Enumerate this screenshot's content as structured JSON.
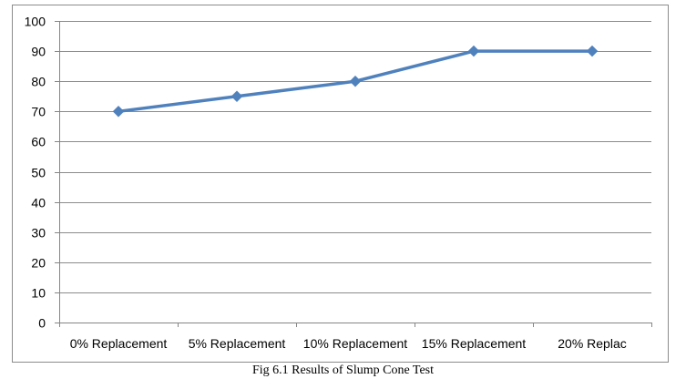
{
  "chart_data": {
    "type": "line",
    "title": "",
    "xlabel": "",
    "ylabel": "",
    "categories": [
      "0% Replacement",
      "5% Replacement",
      "10% Replacement",
      "15% Replacement",
      "20% Replac"
    ],
    "series": [
      {
        "values": [
          70,
          75,
          80,
          90,
          90
        ],
        "color": "#4F81BD",
        "marker": "diamond"
      }
    ],
    "ylim": [
      0,
      100
    ],
    "yticks": [
      0,
      10,
      20,
      30,
      40,
      50,
      60,
      70,
      80,
      90,
      100
    ],
    "grid": true,
    "legend": "none"
  },
  "caption": "Fig 6.1 Results of Slump Cone Test"
}
